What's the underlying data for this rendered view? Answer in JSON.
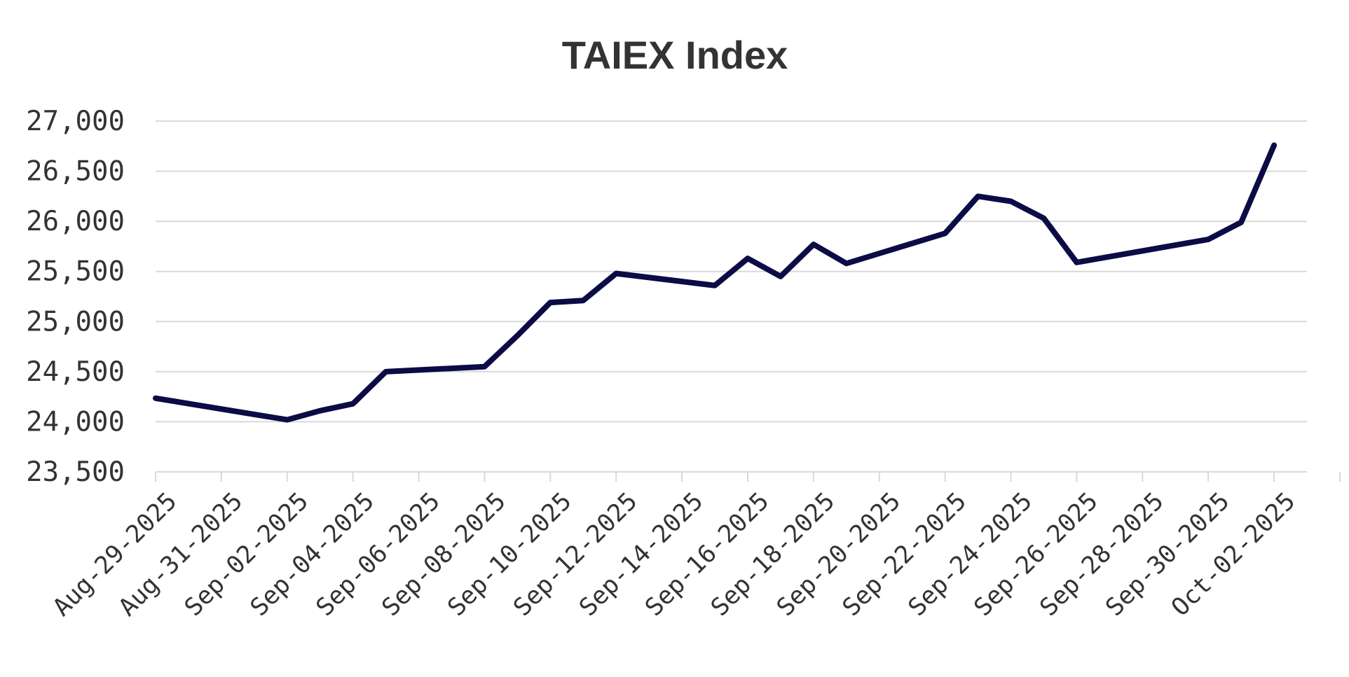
{
  "chart_data": {
    "type": "line",
    "title": "TAIEX Index",
    "xlabel": "",
    "ylabel": "",
    "ylim": [
      23500,
      27000
    ],
    "xlim": [
      "2025-08-29",
      "2025-10-03"
    ],
    "y_ticks": [
      23500,
      24000,
      24500,
      25000,
      25500,
      26000,
      26500,
      27000
    ],
    "y_tick_labels": [
      "23,500",
      "24,000",
      "24,500",
      "25,000",
      "25,500",
      "26,000",
      "26,500",
      "27,000"
    ],
    "x_ticks": [
      "2025-08-29",
      "2025-08-31",
      "2025-09-02",
      "2025-09-04",
      "2025-09-06",
      "2025-09-08",
      "2025-09-10",
      "2025-09-12",
      "2025-09-14",
      "2025-09-16",
      "2025-09-18",
      "2025-09-20",
      "2025-09-22",
      "2025-09-24",
      "2025-09-26",
      "2025-09-28",
      "2025-09-30",
      "2025-10-02",
      "2025-10-04"
    ],
    "x_tick_labels": [
      "Aug-29-2025",
      "Aug-31-2025",
      "Sep-02-2025",
      "Sep-04-2025",
      "Sep-06-2025",
      "Sep-08-2025",
      "Sep-10-2025",
      "Sep-12-2025",
      "Sep-14-2025",
      "Sep-16-2025",
      "Sep-18-2025",
      "Sep-20-2025",
      "Sep-22-2025",
      "Sep-24-2025",
      "Sep-26-2025",
      "Sep-28-2025",
      "Sep-30-2025",
      "Oct-02-2025",
      ""
    ],
    "grid": true,
    "legend": "none",
    "series": [
      {
        "color": "#0b0b45",
        "x": [
          "2025-08-29",
          "2025-09-02",
          "2025-09-03",
          "2025-09-04",
          "2025-09-05",
          "2025-09-08",
          "2025-09-09",
          "2025-09-10",
          "2025-09-11",
          "2025-09-12",
          "2025-09-15",
          "2025-09-16",
          "2025-09-17",
          "2025-09-18",
          "2025-09-19",
          "2025-09-22",
          "2025-09-23",
          "2025-09-24",
          "2025-09-25",
          "2025-09-26",
          "2025-09-30",
          "2025-10-01",
          "2025-10-02"
        ],
        "y": [
          24235,
          24020,
          24110,
          24180,
          24500,
          24550,
          24860,
          25190,
          25210,
          25480,
          25360,
          25630,
          25450,
          25770,
          25580,
          25880,
          26250,
          26200,
          26030,
          25590,
          25820,
          25990,
          26760
        ]
      }
    ]
  }
}
